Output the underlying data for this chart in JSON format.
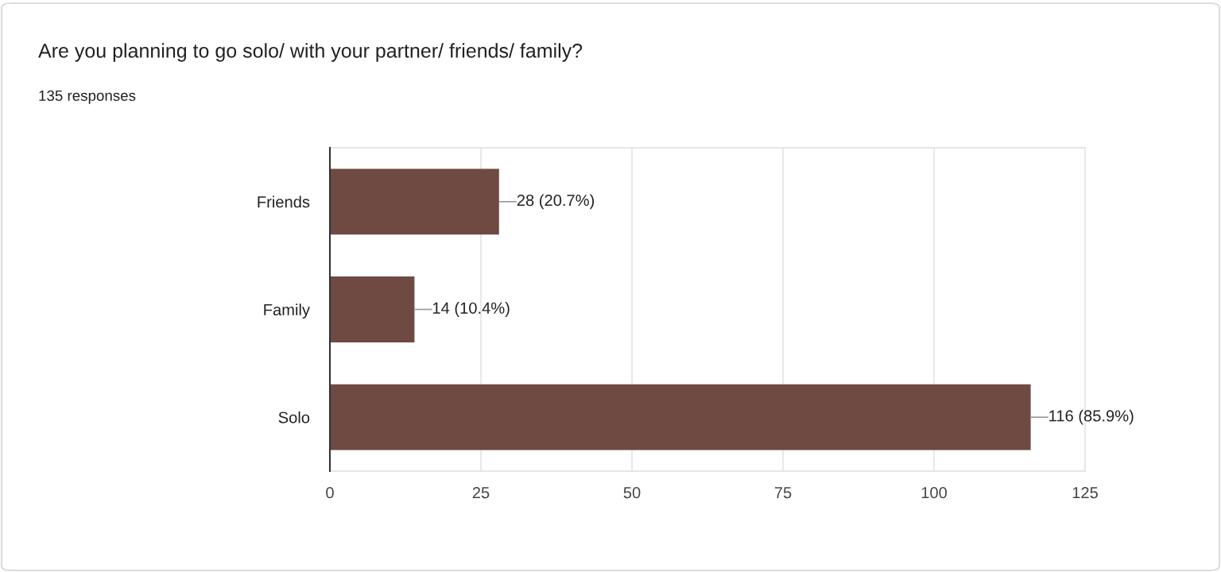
{
  "chart_data": {
    "type": "bar",
    "orientation": "horizontal",
    "title": "Are you planning to go solo/ with your partner/ friends/ family?",
    "subtitle": "135 responses",
    "categories": [
      "Friends",
      "Family",
      "Solo"
    ],
    "values": [
      28,
      14,
      116
    ],
    "value_labels": [
      "28 (20.7%)",
      "14 (10.4%)",
      "116 (85.9%)"
    ],
    "color": "#6e4a42",
    "xlim": [
      0,
      125
    ],
    "xticks": [
      0,
      25,
      50,
      75,
      100,
      125
    ],
    "grid": "x"
  }
}
